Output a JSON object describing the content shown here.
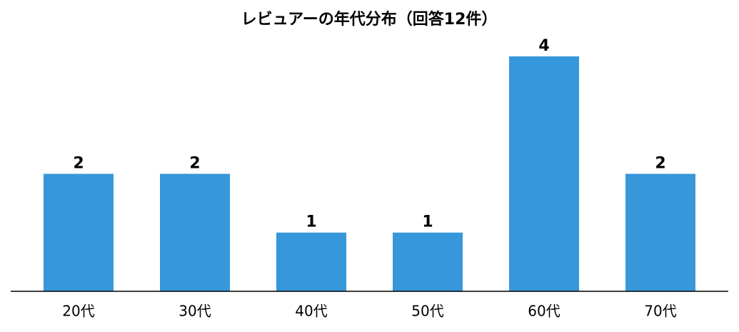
{
  "chart_data": {
    "type": "bar",
    "title": "レビュアーの年代分布（回答12件）",
    "categories": [
      "20代",
      "30代",
      "40代",
      "50代",
      "60代",
      "70代"
    ],
    "values": [
      2,
      2,
      1,
      1,
      4,
      2
    ],
    "color": "#3697da",
    "ylim": [
      0,
      4.2
    ]
  }
}
